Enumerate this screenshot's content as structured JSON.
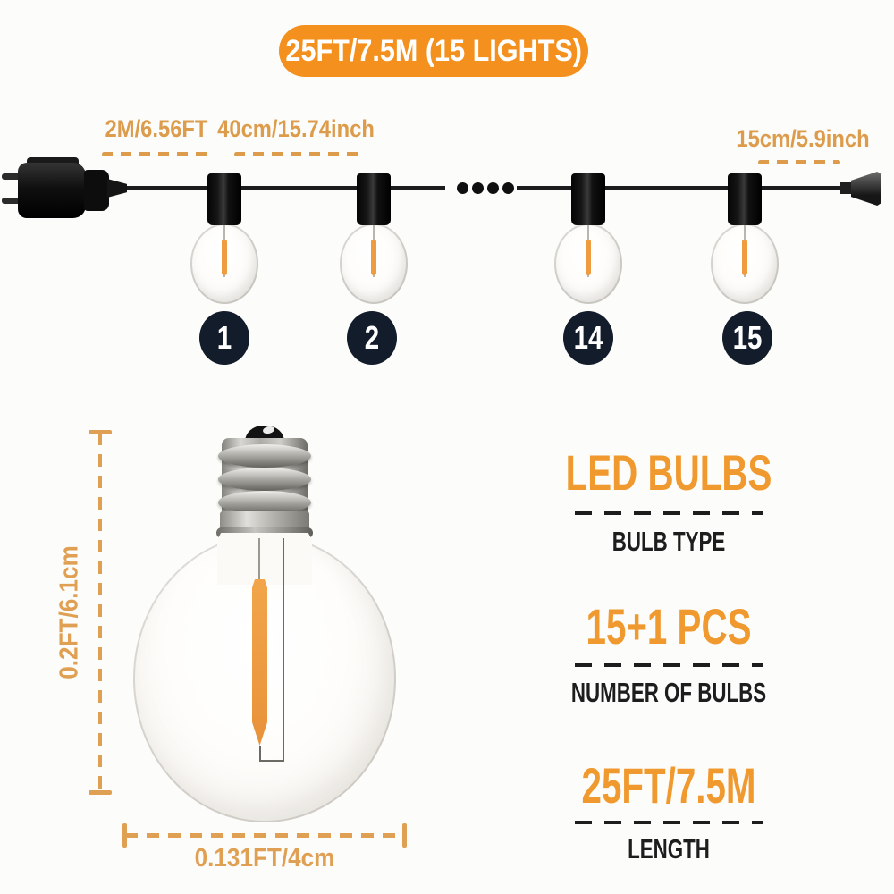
{
  "badge": {
    "label": "25FT/7.5M (15 LIGHTS)"
  },
  "measurements": {
    "lead_length": "2M/6.56FT",
    "bulb_spacing": "40cm/15.74inch",
    "end_spacing": "15cm/5.9inch"
  },
  "string_lights": {
    "bulb_numbers": [
      "1",
      "2",
      "14",
      "15"
    ]
  },
  "bulb_dimensions": {
    "height": "0.2FT/6.1cm",
    "width": "0.131FT/4cm"
  },
  "specs": [
    {
      "value": "LED BULBS",
      "label": "BULB TYPE"
    },
    {
      "value": "15+1 PCS",
      "label": "NUMBER OF BULBS"
    },
    {
      "value": "25FT/7.5M",
      "label": "LENGTH"
    }
  ],
  "colors": {
    "accent_orange": "#F4911E",
    "measure_orange": "#DC9C4B",
    "dimension_orange": "#E0A053",
    "spec_orange": "#F0992E",
    "number_navy": "#131C2B",
    "wire_black": "#1C1C1C",
    "filament_orange": "#EE9C3F"
  }
}
